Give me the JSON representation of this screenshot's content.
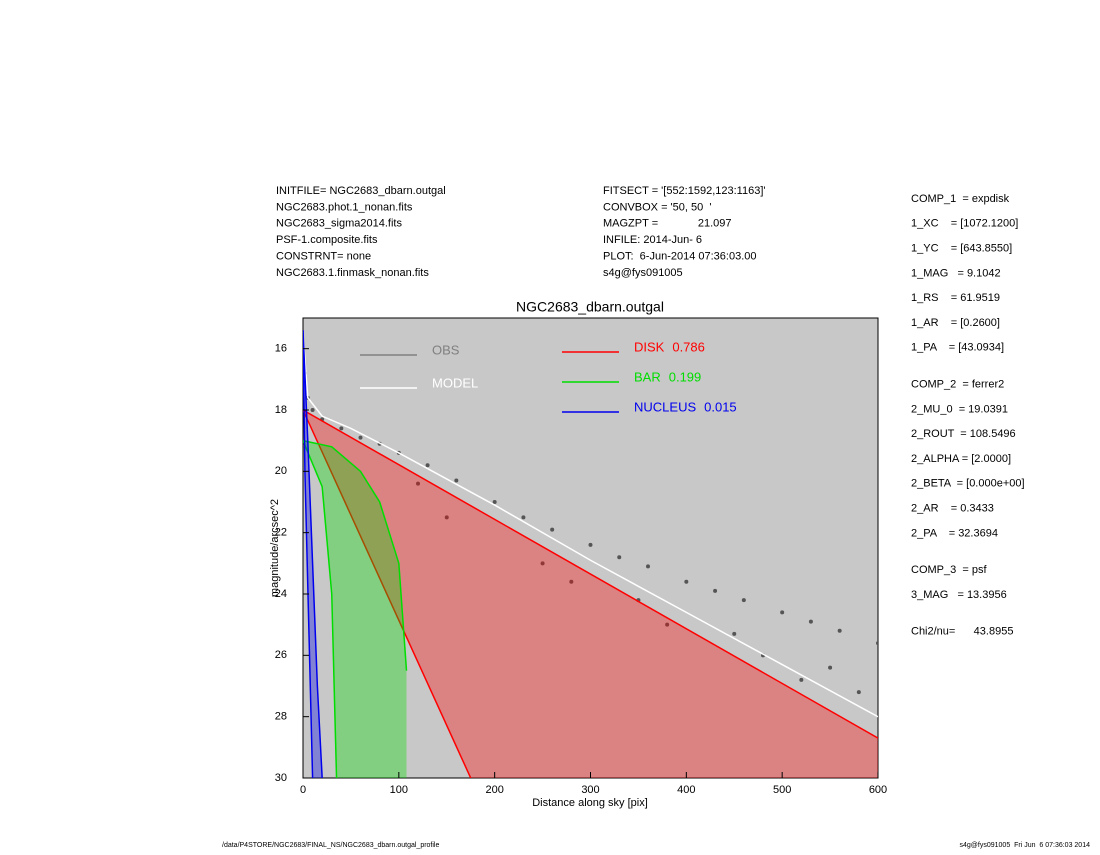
{
  "header": {
    "left": [
      "INITFILE= NGC2683_dbarn.outgal",
      "NGC2683.phot.1_nonan.fits",
      "NGC2683_sigma2014.fits",
      "PSF-1.composite.fits",
      "CONSTRNT= none",
      "NGC2683.1.finmask_nonan.fits"
    ],
    "middle": [
      "FITSECT = '[552:1592,123:1163]'",
      "CONVBOX = '50, 50  '",
      "MAGZPT =             21.097",
      "INFILE: 2014-Jun- 6",
      "PLOT:  6-Jun-2014 07:36:03.00",
      "s4g@fys091005"
    ]
  },
  "params": [
    [
      "COMP_1  = expdisk",
      "1_XC    = [1072.1200]",
      "1_YC    = [643.8550]",
      "1_MAG   = 9.1042",
      "1_RS    = 61.9519",
      "1_AR    = [0.2600]",
      "1_PA    = [43.0934]"
    ],
    [
      "COMP_2  = ferrer2",
      "2_MU_0  = 19.0391",
      "2_ROUT  = 108.5496",
      "2_ALPHA = [2.0000]",
      "2_BETA  = [0.000e+00]",
      "2_AR    = 0.3433",
      "2_PA    = 32.3694"
    ],
    [
      "COMP_3  = psf",
      "3_MAG   = 13.3956"
    ],
    [
      "Chi2/nu=      43.8955"
    ]
  ],
  "footer": {
    "left": "/data/P4STORE/NGC2683/FINAL_NS/NGC2683_dbarn.outgal_profile",
    "right": "s4g@fys091005  Fri Jun  6 07:36:03 2014"
  },
  "chart_data": {
    "type": "scatter",
    "title": "NGC2683_dbarn.outgal",
    "x_label": "Distance along sky [pix]",
    "y_label": "magnitude/arcsec^2",
    "xlim": [
      0,
      600
    ],
    "xticks": [
      0,
      100,
      200,
      300,
      400,
      500,
      600
    ],
    "ylim": [
      30,
      15
    ],
    "yticks": [
      16,
      18,
      20,
      22,
      24,
      26,
      28,
      30
    ],
    "series": [
      {
        "name": "OBS",
        "color": "#808080",
        "mark": "points",
        "x": [
          2,
          5,
          10,
          20,
          40,
          60,
          80,
          100,
          130,
          160,
          200,
          230,
          260,
          300,
          330,
          360,
          400,
          430,
          460,
          500,
          530,
          560,
          600,
          150,
          250,
          350,
          450,
          550,
          480,
          580,
          120,
          280,
          380,
          520
        ],
        "values": [
          16.8,
          17.6,
          18.0,
          18.3,
          18.6,
          18.9,
          19.1,
          19.4,
          19.8,
          20.3,
          21.0,
          21.5,
          21.9,
          22.4,
          22.8,
          23.1,
          23.6,
          23.9,
          24.2,
          24.6,
          24.9,
          25.2,
          25.6,
          21.5,
          23.0,
          24.2,
          25.3,
          26.4,
          26.0,
          27.2,
          20.4,
          23.6,
          25.0,
          26.8
        ]
      },
      {
        "name": "MODEL",
        "color": "#ffffff",
        "mark": "line",
        "x": [
          0,
          5,
          20,
          50,
          100,
          200,
          300,
          400,
          500,
          600
        ],
        "values": [
          15.5,
          17.6,
          18.2,
          18.6,
          19.4,
          21.1,
          22.9,
          24.6,
          26.3,
          28.0
        ]
      },
      {
        "name": "DISK",
        "fraction": 0.786,
        "color": "#ff0000",
        "mark": "band",
        "x": [
          0,
          600
        ],
        "values": [
          18.0,
          28.7
        ],
        "inner_x": [
          0,
          175
        ],
        "inner_values": [
          18.0,
          30.0
        ]
      },
      {
        "name": "BAR",
        "fraction": 0.199,
        "color": "#00dd00",
        "mark": "band",
        "x": [
          0,
          30,
          60,
          80,
          100,
          108
        ],
        "values": [
          19.0,
          19.2,
          20.0,
          21.0,
          23.0,
          26.5
        ],
        "inner_x": [
          0,
          20,
          30,
          35
        ],
        "inner_values": [
          19.0,
          20.5,
          24.0,
          30.0
        ]
      },
      {
        "name": "NUCLEUS",
        "fraction": 0.015,
        "color": "#0000ee",
        "mark": "band",
        "x": [
          0,
          5,
          10,
          15,
          20
        ],
        "values": [
          15.4,
          19.0,
          23.0,
          27.0,
          30.0
        ],
        "inner_x": [
          0,
          2,
          10
        ],
        "inner_values": [
          15.4,
          20.0,
          30.0
        ]
      }
    ]
  }
}
